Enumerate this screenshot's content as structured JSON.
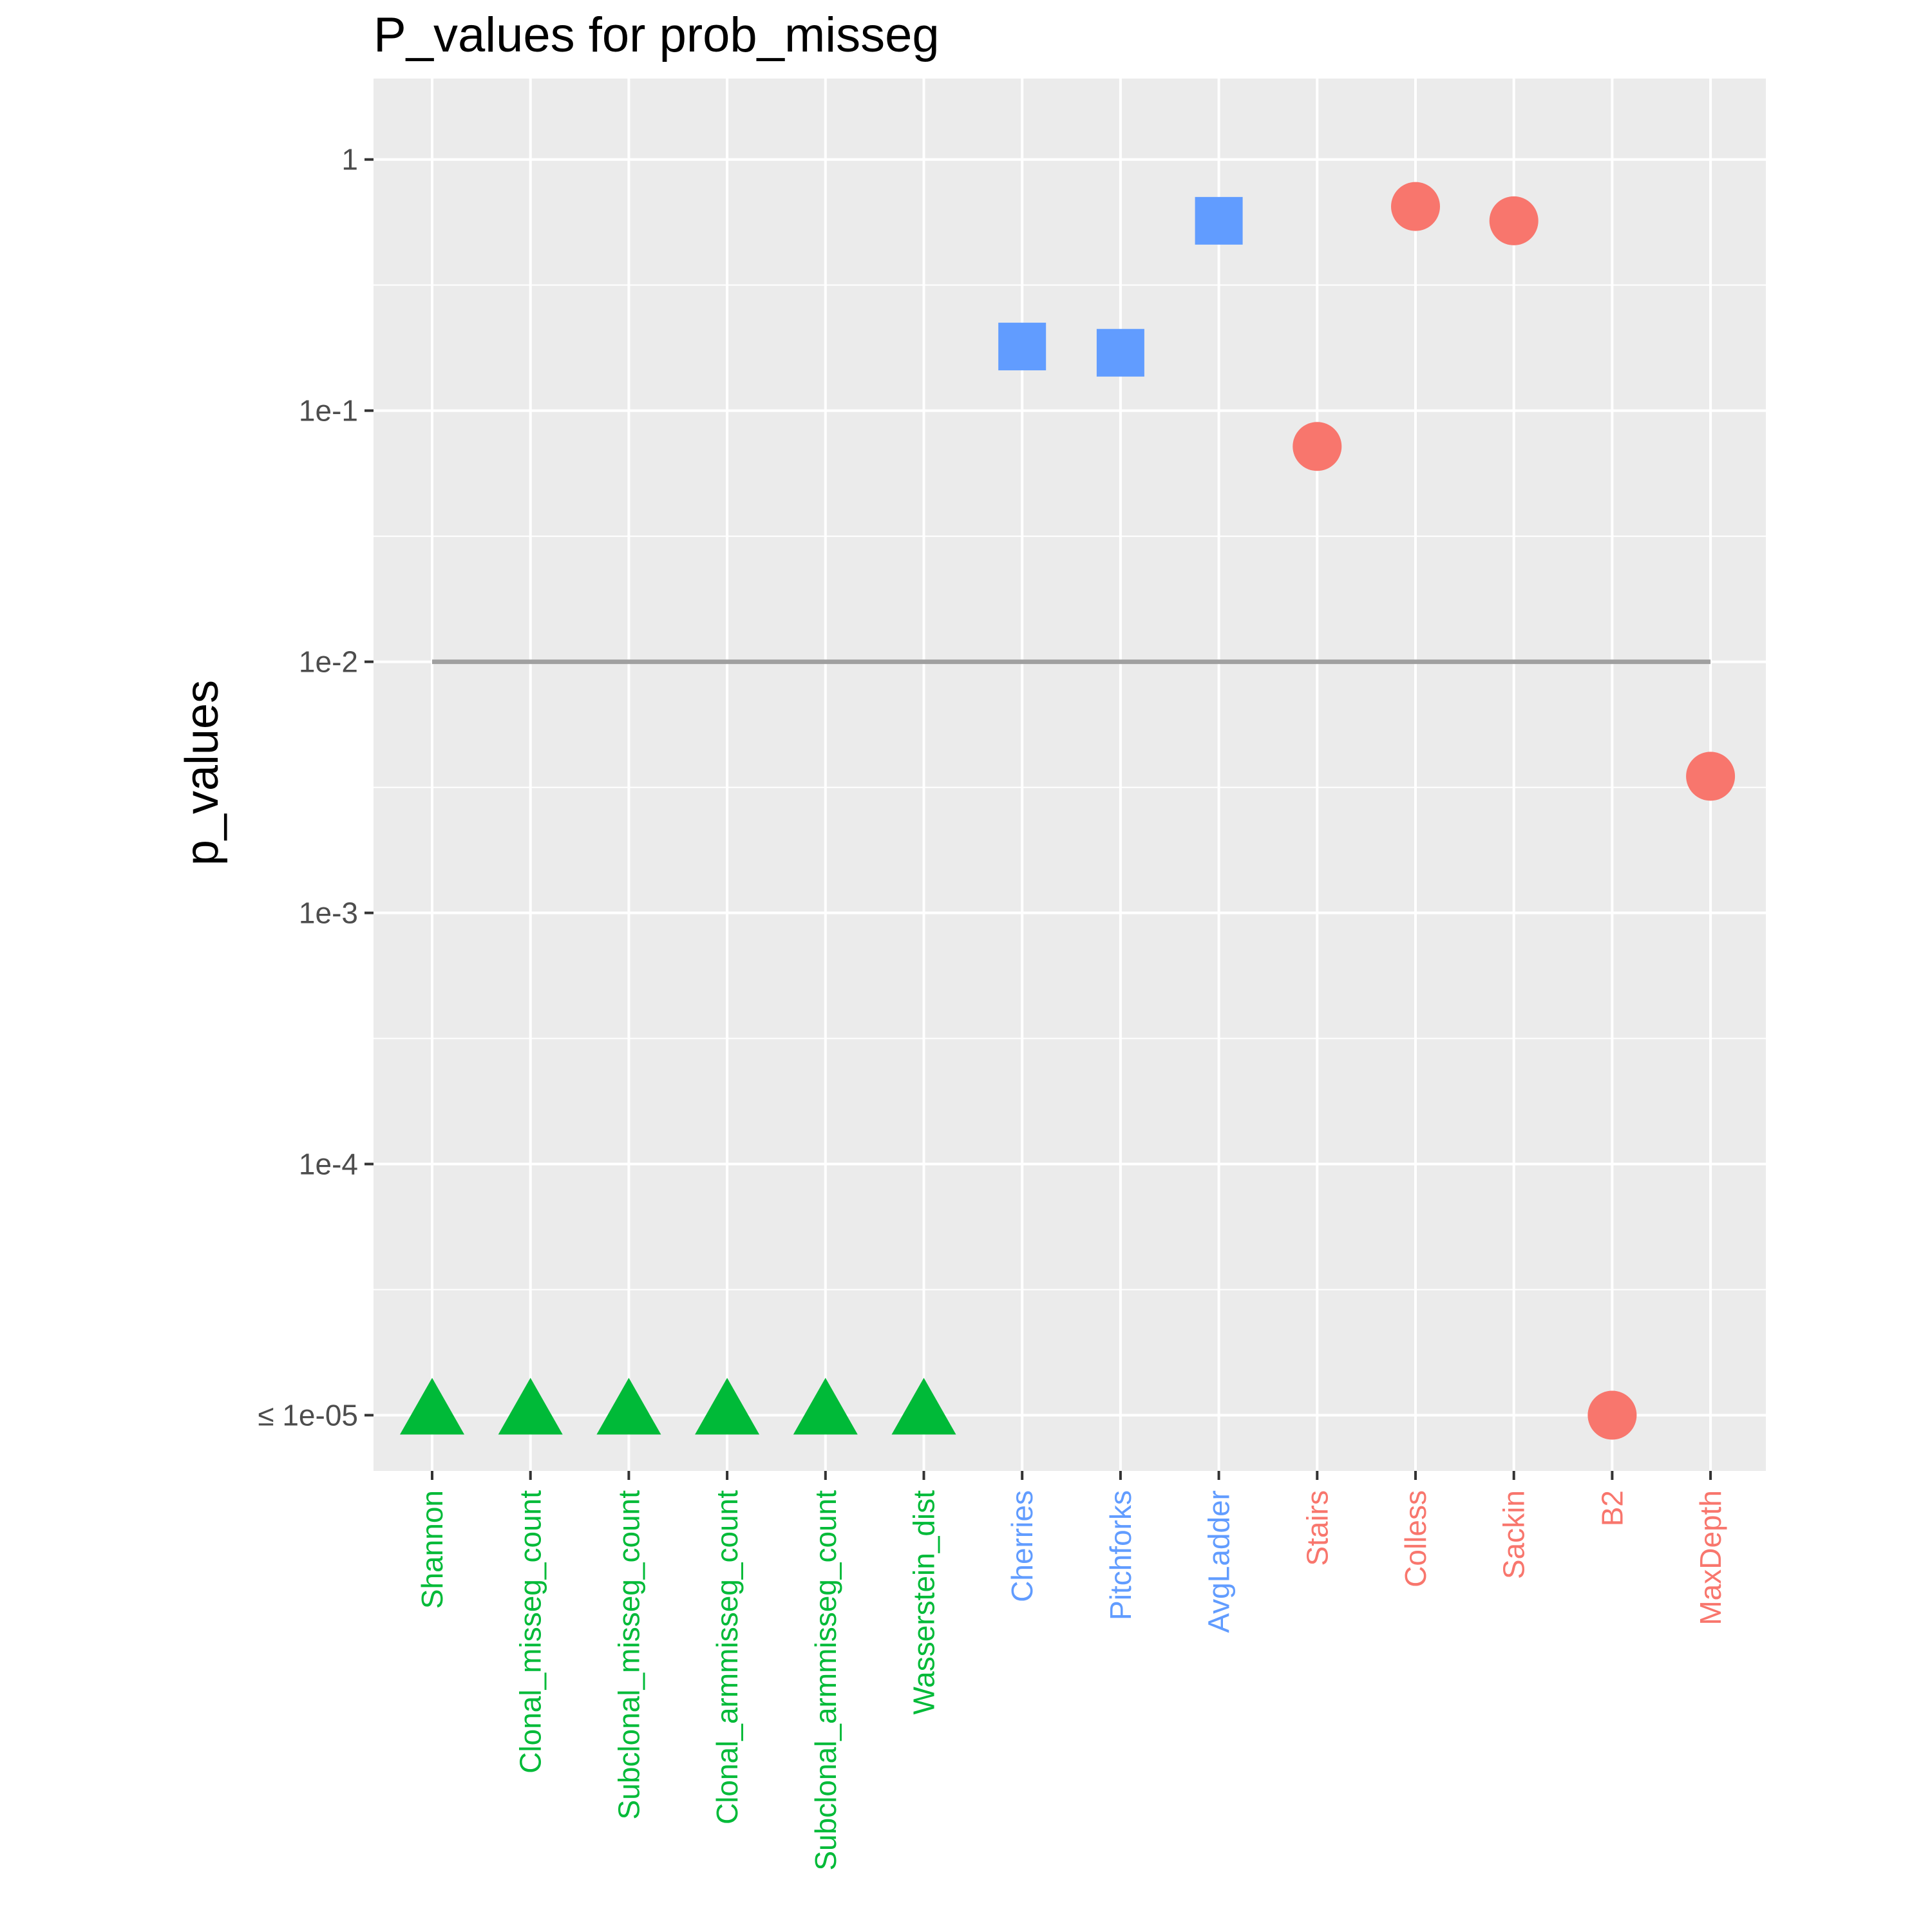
{
  "chart_data": {
    "type": "scatter",
    "title": "P_values for prob_misseg",
    "xlabel": "",
    "ylabel": "p_values",
    "y_scale": "log10",
    "ylim": [
      6e-06,
      2.1
    ],
    "y_ticks": [
      {
        "value": 1,
        "label": "1"
      },
      {
        "value": 0.1,
        "label": "1e-1"
      },
      {
        "value": 0.01,
        "label": "1e-2"
      },
      {
        "value": 0.001,
        "label": "1e-3"
      },
      {
        "value": 0.0001,
        "label": "1e-4"
      },
      {
        "value": 1e-05,
        "label": "≤ 1e-05"
      }
    ],
    "grid": true,
    "legend": "none",
    "background": "#ebebeb",
    "threshold": {
      "value": 0.01,
      "color": "#a0a0a0"
    },
    "categories": [
      "Shannon",
      "Clonal_misseg_count",
      "Subclonal_misseg_count",
      "Clonal_armmisseg_count",
      "Subclonal_armmisseg_count",
      "Wasserstein_dist",
      "Cherries",
      "Pitchforks",
      "AvgLadder",
      "Stairs",
      "Colless",
      "Sackin",
      "B2",
      "MaxDepth"
    ],
    "groups": [
      {
        "shape": "triangle",
        "color": "#00ba38",
        "points": [
          {
            "x": "Shannon",
            "y": 1e-05
          },
          {
            "x": "Clonal_misseg_count",
            "y": 1e-05
          },
          {
            "x": "Subclonal_misseg_count",
            "y": 1e-05
          },
          {
            "x": "Clonal_armmisseg_count",
            "y": 1e-05
          },
          {
            "x": "Subclonal_armmisseg_count",
            "y": 1e-05
          },
          {
            "x": "Wasserstein_dist",
            "y": 1e-05
          }
        ]
      },
      {
        "shape": "square",
        "color": "#619cff",
        "points": [
          {
            "x": "Cherries",
            "y": 0.18
          },
          {
            "x": "Pitchforks",
            "y": 0.17
          },
          {
            "x": "AvgLadder",
            "y": 0.57
          }
        ]
      },
      {
        "shape": "circle",
        "color": "#f8766d",
        "points": [
          {
            "x": "Stairs",
            "y": 0.072
          },
          {
            "x": "Colless",
            "y": 0.65
          },
          {
            "x": "Sackin",
            "y": 0.57
          },
          {
            "x": "B2",
            "y": 1e-05
          },
          {
            "x": "MaxDepth",
            "y": 0.0035
          }
        ]
      }
    ]
  }
}
